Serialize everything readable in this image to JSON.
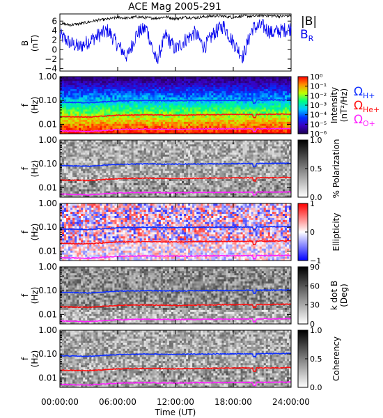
{
  "title": "ACE Mag 2005-291",
  "colors": {
    "btot": "#000000",
    "br": "#0000ee",
    "h_plus": "#1030ff",
    "he_plus": "#ff1010",
    "o_plus": "#ff20ff",
    "frame": "#000000"
  },
  "panel1": {
    "ylabel_line1": "B",
    "ylabel_line2": "(nT)",
    "yticks": [
      "6",
      "4",
      "2",
      "0",
      "−2",
      "−4"
    ],
    "legend_btot": "|B|",
    "legend_br_main": "B",
    "legend_br_sub": "R"
  },
  "common": {
    "ylabel_line1": "f",
    "ylabel_line2": "(Hz)",
    "yticks": [
      "1.00",
      "0.10",
      "0.01"
    ]
  },
  "panels": {
    "intensity": {
      "colorbar_title_line1": "Intensity",
      "colorbar_title_line2": "(nT²/Hz)",
      "ticks": [
        "10⁰",
        "10⁻¹",
        "10⁻²",
        "10⁻³",
        "10⁻⁴",
        "10⁻⁵",
        "10⁻⁶"
      ],
      "legend_h": "Ω",
      "legend_h_sub": "H+",
      "legend_he": "Ω",
      "legend_he_sub": "He+",
      "legend_o": "Ω",
      "legend_o_sub": "O+"
    },
    "polarization": {
      "colorbar_title": "% Polarization",
      "ticks": [
        "1.0",
        "0.5",
        "0.0"
      ]
    },
    "ellipticity": {
      "colorbar_title": "Ellipticity",
      "ticks": [
        "1",
        "0",
        "−1"
      ]
    },
    "kdotb": {
      "colorbar_title_line1": "k dot B",
      "colorbar_title_line2": "(Deg)",
      "ticks": [
        "90",
        "60",
        "30",
        "0"
      ]
    },
    "coherency": {
      "colorbar_title": "Coherency",
      "ticks": [
        "1.0",
        "0.5",
        "0.0"
      ]
    }
  },
  "xaxis": {
    "ticks": [
      "00:00:00",
      "06:00:00",
      "12:00:00",
      "18:00:00",
      "24:00:00"
    ],
    "label": "Time (UT)"
  },
  "chart_data": [
    {
      "type": "line",
      "title": "ACE Mag 2005-291",
      "xlabel": "Time (UT)",
      "ylabel": "B (nT)",
      "xlim": [
        0,
        24
      ],
      "ylim": [
        -4.5,
        7.5
      ],
      "series": [
        {
          "name": "|B|",
          "x": [
            0,
            1,
            2,
            3,
            4,
            5,
            6,
            7,
            8,
            9,
            10,
            11,
            12,
            13,
            14,
            15,
            16,
            17,
            18,
            19,
            20,
            21,
            22,
            23,
            24
          ],
          "values": [
            5.5,
            5.2,
            5.4,
            5.8,
            6.2,
            6.4,
            6.8,
            6.6,
            6.9,
            6.7,
            6.6,
            6.9,
            6.5,
            6.8,
            6.7,
            6.9,
            7.1,
            7.0,
            6.8,
            7.1,
            7.0,
            7.2,
            7.1,
            7.0,
            7.2
          ]
        },
        {
          "name": "B_R",
          "x": [
            0,
            1,
            2,
            3,
            4,
            5,
            6,
            7,
            8,
            9,
            10,
            11,
            12,
            13,
            14,
            15,
            16,
            17,
            18,
            19,
            20,
            21,
            22,
            23,
            24
          ],
          "values": [
            3.0,
            1.5,
            0.5,
            1.8,
            3.0,
            4.0,
            1.0,
            -1.5,
            3.5,
            4.5,
            -2.5,
            3.0,
            0.0,
            2.0,
            3.5,
            0.5,
            3.5,
            5.0,
            1.5,
            -1.5,
            4.5,
            5.0,
            3.5,
            4.0,
            4.5
          ]
        }
      ]
    },
    {
      "type": "heatmap",
      "xlabel": "Time (UT)",
      "ylabel": "f (Hz)",
      "y_scale": "log",
      "ylim": [
        0.004,
        1.0
      ],
      "xlim": [
        0,
        24
      ],
      "colorbar": "Intensity (nT²/Hz)",
      "colorbar_range": [
        1e-06,
        1
      ],
      "overlays": [
        {
          "name": "Ω_H+",
          "x": [
            0,
            3,
            6,
            9,
            12,
            15,
            18,
            21,
            24
          ],
          "values": [
            0.085,
            0.08,
            0.095,
            0.1,
            0.097,
            0.1,
            0.102,
            0.104,
            0.106
          ]
        },
        {
          "name": "Ω_He+",
          "x": [
            0,
            3,
            6,
            9,
            12,
            15,
            18,
            21,
            24
          ],
          "values": [
            0.021,
            0.02,
            0.024,
            0.025,
            0.024,
            0.025,
            0.026,
            0.026,
            0.027
          ]
        },
        {
          "name": "Ω_O+",
          "x": [
            0,
            3,
            6,
            9,
            12,
            15,
            18,
            21,
            24
          ],
          "values": [
            0.0053,
            0.005,
            0.006,
            0.0063,
            0.0061,
            0.0063,
            0.0064,
            0.0065,
            0.0066
          ]
        }
      ]
    },
    {
      "type": "heatmap",
      "ylabel": "f (Hz)",
      "y_scale": "log",
      "colorbar": "% Polarization",
      "colorbar_range": [
        0,
        1
      ]
    },
    {
      "type": "heatmap",
      "ylabel": "f (Hz)",
      "y_scale": "log",
      "colorbar": "Ellipticity",
      "colorbar_range": [
        -1,
        1
      ]
    },
    {
      "type": "heatmap",
      "ylabel": "f (Hz)",
      "y_scale": "log",
      "colorbar": "k dot B (Deg)",
      "colorbar_range": [
        0,
        90
      ]
    },
    {
      "type": "heatmap",
      "ylabel": "f (Hz)",
      "y_scale": "log",
      "colorbar": "Coherency",
      "colorbar_range": [
        0,
        1
      ]
    }
  ]
}
